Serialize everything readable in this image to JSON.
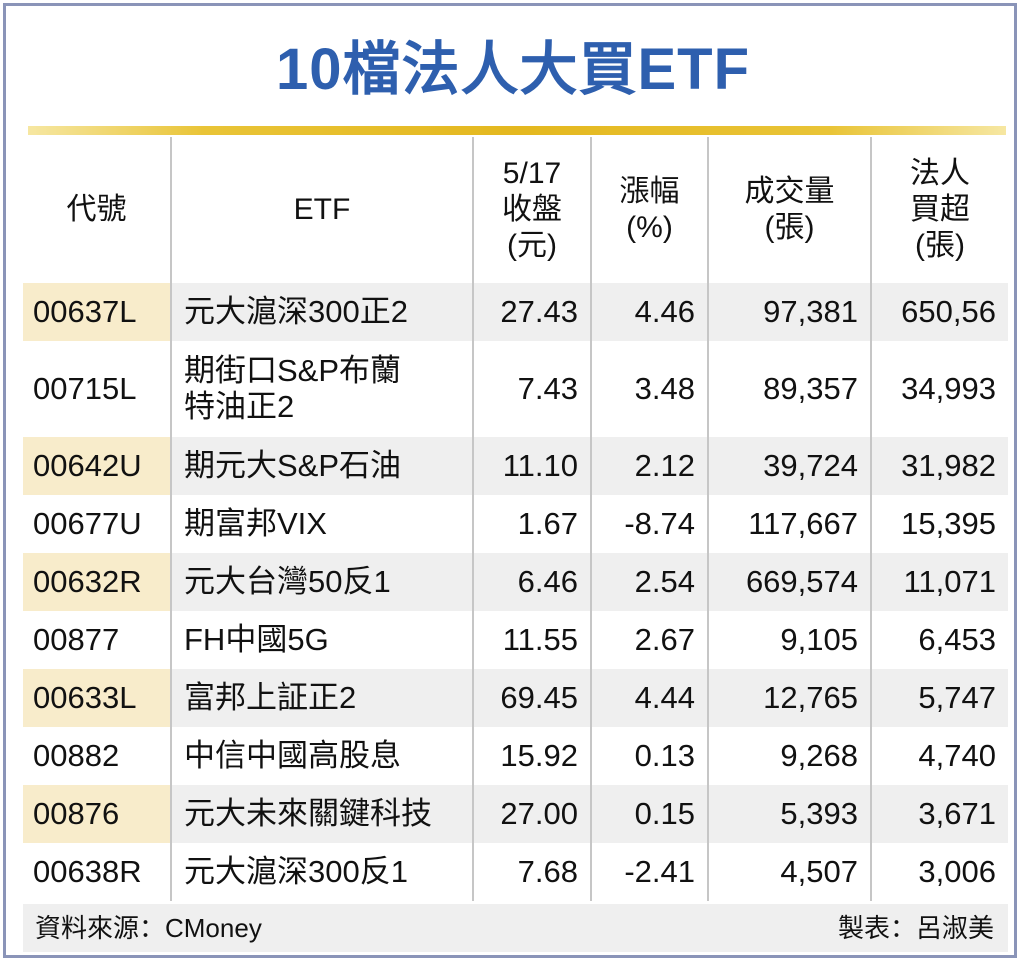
{
  "title": "10檔法人大買ETF",
  "headers": {
    "code": "代號",
    "etf": "ETF",
    "close_line1": "5/17",
    "close_line2": "收盤",
    "close_line3": "(元)",
    "change_line1": "漲幅",
    "change_line2": "(%)",
    "volume_line1": "成交量",
    "volume_line2": "(張)",
    "buy_line1": "法人",
    "buy_line2": "買超",
    "buy_line3": "(張)"
  },
  "rows": [
    {
      "code": "00637L",
      "name_line1": "元大滬深300正2",
      "name_line2": "",
      "close": "27.43",
      "change": "4.46",
      "volume": "97,381",
      "net_buy": "650,56"
    },
    {
      "code": "00715L",
      "name_line1": "期街口S&P布蘭",
      "name_line2": "特油正2",
      "close": "7.43",
      "change": "3.48",
      "volume": "89,357",
      "net_buy": "34,993"
    },
    {
      "code": "00642U",
      "name_line1": "期元大S&P石油",
      "name_line2": "",
      "close": "11.10",
      "change": "2.12",
      "volume": "39,724",
      "net_buy": "31,982"
    },
    {
      "code": "00677U",
      "name_line1": "期富邦VIX",
      "name_line2": "",
      "close": "1.67",
      "change": "-8.74",
      "volume": "117,667",
      "net_buy": "15,395"
    },
    {
      "code": "00632R",
      "name_line1": "元大台灣50反1",
      "name_line2": "",
      "close": "6.46",
      "change": "2.54",
      "volume": "669,574",
      "net_buy": "11,071"
    },
    {
      "code": "00877",
      "name_line1": "FH中國5G",
      "name_line2": "",
      "close": "11.55",
      "change": "2.67",
      "volume": "9,105",
      "net_buy": "6,453"
    },
    {
      "code": "00633L",
      "name_line1": "富邦上証正2",
      "name_line2": "",
      "close": "69.45",
      "change": "4.44",
      "volume": "12,765",
      "net_buy": "5,747"
    },
    {
      "code": "00882",
      "name_line1": "中信中國高股息",
      "name_line2": "",
      "close": "15.92",
      "change": "0.13",
      "volume": "9,268",
      "net_buy": "4,740"
    },
    {
      "code": "00876",
      "name_line1": "元大未來關鍵科技",
      "name_line2": "",
      "close": "27.00",
      "change": "0.15",
      "volume": "5,393",
      "net_buy": "3,671"
    },
    {
      "code": "00638R",
      "name_line1": "元大滬深300反1",
      "name_line2": "",
      "close": "7.68",
      "change": "-2.41",
      "volume": "4,507",
      "net_buy": "3,006"
    }
  ],
  "footer": {
    "source": "資料來源：CMoney",
    "maker": "製表：呂淑美"
  },
  "colors": {
    "title": "#2e5fae",
    "gold_rule": "#e4b81f",
    "row_shade": "#efefef",
    "code_shade": "#f8eccb",
    "frame": "#8a94b8"
  }
}
